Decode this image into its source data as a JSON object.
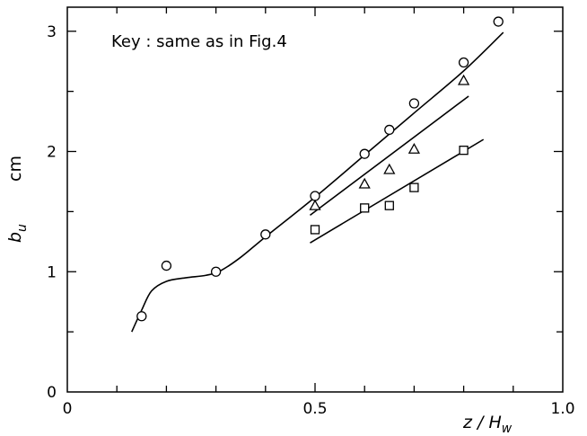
{
  "chart_data": {
    "type": "scatter",
    "title": "",
    "annotation": "Key : same as in Fig.4",
    "xlabel": "z / H",
    "xlabel_subscript": "w",
    "ylabel": "b",
    "ylabel_subscript": "u",
    "yunit": "cm",
    "xlim": [
      0,
      1.0
    ],
    "ylim": [
      0,
      3.2
    ],
    "x_ticks": [
      0,
      0.5,
      1.0
    ],
    "x_tick_labels": [
      "0",
      "0.5",
      "1.0"
    ],
    "x_minor_step": 0.1,
    "y_ticks": [
      0,
      1,
      2,
      3
    ],
    "y_tick_labels": [
      "0",
      "1",
      "2",
      "3"
    ],
    "y_minor_step": 0.5,
    "grid": false,
    "legend": "none",
    "series": [
      {
        "marker": "circle",
        "points": [
          {
            "x": 0.15,
            "y": 0.63
          },
          {
            "x": 0.2,
            "y": 1.05
          },
          {
            "x": 0.3,
            "y": 1.0
          },
          {
            "x": 0.4,
            "y": 1.31
          },
          {
            "x": 0.5,
            "y": 1.63
          },
          {
            "x": 0.6,
            "y": 1.98
          },
          {
            "x": 0.65,
            "y": 2.18
          },
          {
            "x": 0.7,
            "y": 2.4
          },
          {
            "x": 0.8,
            "y": 2.74
          },
          {
            "x": 0.87,
            "y": 3.08
          }
        ],
        "curve": [
          [
            0.13,
            0.5
          ],
          [
            0.15,
            0.68
          ],
          [
            0.17,
            0.84
          ],
          [
            0.2,
            0.92
          ],
          [
            0.24,
            0.95
          ],
          [
            0.28,
            0.97
          ],
          [
            0.31,
            1.01
          ],
          [
            0.35,
            1.12
          ],
          [
            0.4,
            1.29
          ],
          [
            0.5,
            1.62
          ],
          [
            0.6,
            1.97
          ],
          [
            0.7,
            2.32
          ],
          [
            0.8,
            2.67
          ],
          [
            0.88,
            2.99
          ]
        ]
      },
      {
        "marker": "triangle",
        "points": [
          {
            "x": 0.5,
            "y": 1.55
          },
          {
            "x": 0.6,
            "y": 1.73
          },
          {
            "x": 0.65,
            "y": 1.85
          },
          {
            "x": 0.7,
            "y": 2.02
          },
          {
            "x": 0.8,
            "y": 2.59
          }
        ],
        "curve": [
          [
            0.49,
            1.47
          ],
          [
            0.81,
            2.46
          ]
        ]
      },
      {
        "marker": "square",
        "points": [
          {
            "x": 0.5,
            "y": 1.35
          },
          {
            "x": 0.6,
            "y": 1.53
          },
          {
            "x": 0.65,
            "y": 1.55
          },
          {
            "x": 0.7,
            "y": 1.7
          },
          {
            "x": 0.8,
            "y": 2.01
          }
        ],
        "curve": [
          [
            0.49,
            1.24
          ],
          [
            0.84,
            2.1
          ]
        ]
      }
    ]
  }
}
